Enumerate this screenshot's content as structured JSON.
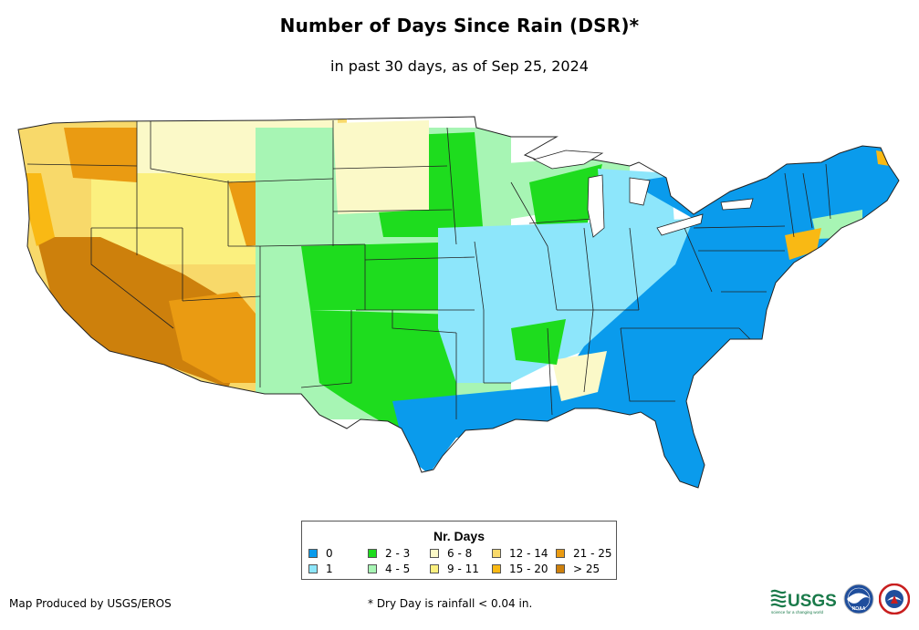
{
  "title": "Number of Days Since Rain (DSR)*",
  "subtitle": "in past 30 days, as of Sep 25, 2024",
  "legend": {
    "title": "Nr. Days",
    "items": [
      {
        "label": "0",
        "color": "#0a9bec"
      },
      {
        "label": "1",
        "color": "#8de6fb"
      },
      {
        "label": "2 - 3",
        "color": "#1edc1e"
      },
      {
        "label": "4 - 5",
        "color": "#a7f5b4"
      },
      {
        "label": "6 - 8",
        "color": "#fbf9c8"
      },
      {
        "label": "9 - 11",
        "color": "#fbf07f"
      },
      {
        "label": "12 - 14",
        "color": "#f8d96a"
      },
      {
        "label": "15 - 20",
        "color": "#f9b914"
      },
      {
        "label": "21 - 25",
        "color": "#ea9b12"
      },
      {
        "label": "> 25",
        "color": "#cd800c"
      }
    ]
  },
  "footer": {
    "producer": "Map Produced by USGS/EROS",
    "note": "* Dry Day is rainfall < 0.04 in."
  },
  "logos": {
    "usgs": "USGS",
    "usgs_tagline": "science for a changing world",
    "noaa": "NOAA"
  },
  "icons": [
    "usgs-logo-icon",
    "noaa-logo-icon",
    "nws-logo-icon"
  ]
}
